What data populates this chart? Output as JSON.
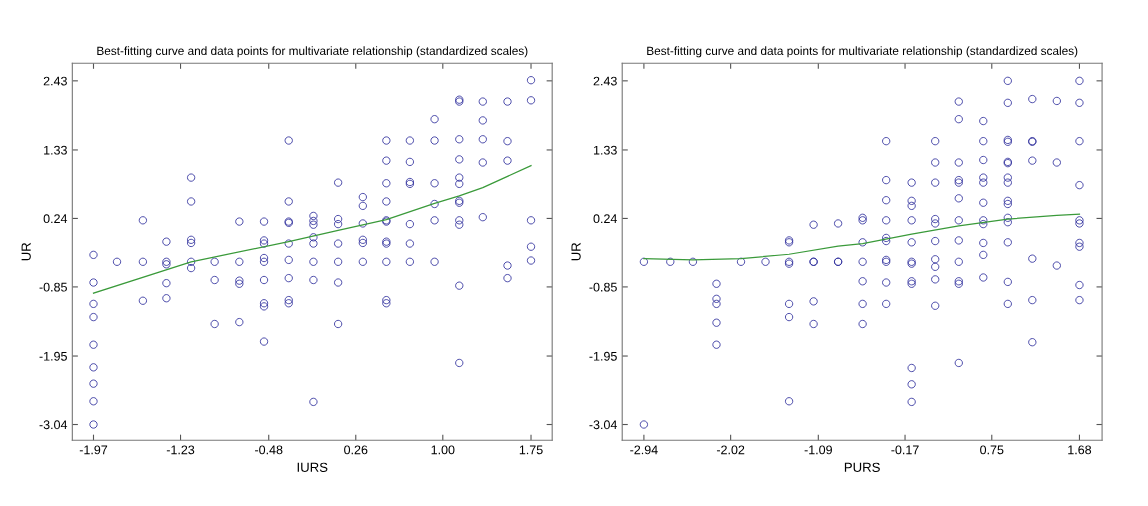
{
  "chart_data": [
    {
      "type": "scatter",
      "title": "Best-fitting curve and data points for multivariate relationship (standardized scales)",
      "xlabel": "IURS",
      "ylabel": "UR",
      "xlim": [
        -2.15,
        1.93
      ],
      "ylim": [
        -3.29,
        2.71
      ],
      "xticks": [
        -1.97,
        -1.23,
        -0.48,
        0.26,
        {
          "value": 1.0,
          "label": "1.00"
        },
        1.75
      ],
      "yticks": [
        2.43,
        1.33,
        0.24,
        -0.85,
        -1.95,
        -3.04
      ],
      "grid": false,
      "series": [
        {
          "marker": "circle",
          "color": "#2a2a9a",
          "x": [
            -1.97,
            -1.97,
            -1.97,
            -1.97,
            -1.97,
            -1.97,
            -1.97,
            -1.97,
            -1.97,
            -1.77,
            -1.55,
            -1.55,
            -1.55,
            -1.35,
            -1.35,
            -1.35,
            -1.35,
            -1.35,
            -1.14,
            -1.14,
            -1.14,
            -1.14,
            -1.14,
            -1.14,
            -0.94,
            -0.94,
            -0.94,
            -0.73,
            -0.73,
            -0.73,
            -0.73,
            -0.73,
            -0.52,
            -0.52,
            -0.52,
            -0.52,
            -0.52,
            -0.52,
            -0.52,
            -0.52,
            -0.52,
            -0.31,
            -0.31,
            -0.31,
            -0.31,
            -0.31,
            -0.31,
            -0.31,
            -0.31,
            -0.31,
            -0.1,
            -0.1,
            -0.1,
            -0.1,
            -0.1,
            -0.1,
            -0.1,
            -0.1,
            0.11,
            0.11,
            0.11,
            0.11,
            0.11,
            0.11,
            0.11,
            0.32,
            0.32,
            0.32,
            0.32,
            0.32,
            0.32,
            0.52,
            0.52,
            0.52,
            0.52,
            0.52,
            0.52,
            0.52,
            0.52,
            0.52,
            0.52,
            0.52,
            0.72,
            0.72,
            0.72,
            0.72,
            0.72,
            0.72,
            0.72,
            0.93,
            0.93,
            0.93,
            0.93,
            0.93,
            0.93,
            1.14,
            1.14,
            1.14,
            1.14,
            1.14,
            1.14,
            1.14,
            1.14,
            1.14,
            1.14,
            1.14,
            1.14,
            1.34,
            1.34,
            1.34,
            1.34,
            1.34,
            1.55,
            1.55,
            1.55,
            1.55,
            1.55,
            1.75,
            1.75,
            1.75,
            1.75,
            1.75
          ],
          "values": [
            -0.34,
            -0.78,
            -1.12,
            -1.33,
            -1.77,
            -2.13,
            -2.39,
            -2.67,
            -3.04,
            -0.45,
            0.21,
            -0.45,
            -1.07,
            -0.13,
            -0.45,
            -0.49,
            -0.79,
            -1.03,
            0.89,
            0.51,
            -0.1,
            -0.15,
            -0.45,
            -0.55,
            -0.45,
            -0.74,
            -1.44,
            0.19,
            -0.45,
            -0.75,
            -0.8,
            -1.41,
            0.19,
            -0.11,
            -0.16,
            -0.39,
            -0.45,
            -0.74,
            -1.11,
            -1.16,
            -1.72,
            1.48,
            0.51,
            0.19,
            0.17,
            -0.16,
            -0.42,
            -0.71,
            -1.06,
            -1.11,
            0.28,
            0.2,
            0.14,
            -0.06,
            -0.16,
            -0.45,
            -0.74,
            -2.68,
            0.81,
            0.23,
            0.15,
            -0.16,
            -0.45,
            -0.78,
            -1.44,
            0.58,
            0.44,
            0.16,
            -0.1,
            -0.15,
            -0.45,
            1.48,
            1.16,
            0.8,
            0.51,
            0.21,
            0.19,
            -0.13,
            -0.16,
            -0.45,
            -1.06,
            -1.11,
            1.48,
            1.14,
            0.82,
            0.79,
            0.15,
            -0.16,
            -0.45,
            1.82,
            1.48,
            0.8,
            0.47,
            0.21,
            -0.45,
            2.13,
            2.1,
            1.5,
            1.18,
            0.89,
            0.79,
            0.52,
            0.49,
            0.21,
            0.14,
            -0.83,
            -2.06,
            2.1,
            1.8,
            1.5,
            1.13,
            0.26,
            2.1,
            1.47,
            1.16,
            -0.51,
            -0.71,
            2.44,
            2.12,
            0.21,
            -0.21,
            -0.43
          ]
        },
        {
          "type": "line",
          "color": "#3a9a3a",
          "x": [
            -1.97,
            -1.14,
            -0.31,
            0.11,
            0.52,
            0.93,
            1.14,
            1.34,
            1.75
          ],
          "values": [
            -0.95,
            -0.45,
            -0.13,
            0.05,
            0.22,
            0.48,
            0.6,
            0.73,
            1.08
          ]
        }
      ]
    },
    {
      "type": "scatter",
      "title": "Best-fitting curve and data points for multivariate relationship (standardized scales)",
      "xlabel": "PURS",
      "ylabel": "UR",
      "xlim": [
        -3.17,
        1.92
      ],
      "ylim": [
        -3.29,
        2.71
      ],
      "xticks": [
        -2.94,
        -2.02,
        -1.09,
        -0.17,
        0.75,
        1.68
      ],
      "yticks": [
        2.43,
        1.33,
        0.24,
        -0.85,
        -1.95,
        -3.04
      ],
      "grid": false,
      "series": [
        {
          "marker": "circle",
          "color": "#2a2a9a",
          "x": [
            -2.94,
            -2.94,
            -2.66,
            -2.42,
            -2.17,
            -2.17,
            -2.17,
            -2.17,
            -2.17,
            -1.91,
            -1.65,
            -1.4,
            -1.4,
            -1.4,
            -1.4,
            -1.4,
            -1.4,
            -1.4,
            -1.14,
            -1.14,
            -1.14,
            -1.14,
            -1.14,
            -0.88,
            -0.88,
            -0.88,
            -0.62,
            -0.62,
            -0.62,
            -0.62,
            -0.62,
            -0.62,
            -0.62,
            -0.37,
            -0.37,
            -0.37,
            -0.37,
            -0.37,
            -0.37,
            -0.37,
            -0.37,
            -0.37,
            -0.37,
            -0.1,
            -0.1,
            -0.1,
            -0.1,
            -0.1,
            -0.1,
            -0.1,
            -0.1,
            -0.1,
            -0.1,
            -0.1,
            -0.1,
            0.15,
            0.15,
            0.15,
            0.15,
            0.15,
            0.15,
            0.15,
            0.15,
            0.15,
            0.15,
            0.4,
            0.4,
            0.4,
            0.4,
            0.4,
            0.4,
            0.4,
            0.4,
            0.4,
            0.4,
            0.4,
            0.4,
            0.66,
            0.66,
            0.66,
            0.66,
            0.66,
            0.66,
            0.66,
            0.66,
            0.66,
            0.66,
            0.66,
            0.92,
            0.92,
            0.92,
            0.92,
            0.92,
            0.92,
            0.92,
            0.92,
            0.92,
            0.92,
            0.92,
            0.92,
            0.92,
            0.92,
            0.92,
            1.18,
            1.18,
            1.18,
            1.18,
            1.18,
            1.18,
            1.18,
            1.44,
            1.44,
            1.44,
            1.68,
            1.68,
            1.68,
            1.68,
            1.68,
            1.68,
            1.68,
            1.68,
            1.68,
            1.68
          ],
          "values": [
            -0.45,
            -3.04,
            -0.45,
            -0.45,
            -0.8,
            -1.04,
            -1.12,
            -1.42,
            -1.77,
            -0.45,
            -0.45,
            -0.11,
            -0.14,
            -0.45,
            -0.48,
            -1.12,
            -1.33,
            -2.67,
            0.14,
            -0.45,
            -0.45,
            -1.08,
            -1.44,
            0.16,
            -0.45,
            -0.45,
            0.25,
            0.21,
            -0.14,
            -0.45,
            -0.76,
            -1.12,
            -1.44,
            1.47,
            0.85,
            0.53,
            0.21,
            -0.07,
            -0.12,
            -0.42,
            -0.45,
            -0.78,
            -1.12,
            0.81,
            0.52,
            0.44,
            0.21,
            -0.14,
            -0.45,
            -0.48,
            -0.76,
            -0.8,
            -2.14,
            -2.4,
            -2.68,
            1.47,
            1.13,
            0.81,
            0.23,
            0.16,
            -0.12,
            -0.41,
            -0.53,
            -0.73,
            -1.15,
            2.1,
            1.82,
            1.13,
            0.85,
            0.81,
            0.56,
            0.21,
            -0.11,
            -0.45,
            -0.76,
            -0.8,
            -2.06,
            1.79,
            1.47,
            1.17,
            0.89,
            0.81,
            0.49,
            0.21,
            0.15,
            -0.15,
            -0.34,
            -0.7,
            2.43,
            2.08,
            1.49,
            1.46,
            1.14,
            1.12,
            0.89,
            0.81,
            0.52,
            0.47,
            0.25,
            0.18,
            -0.14,
            -0.77,
            -1.12,
            2.14,
            1.47,
            1.46,
            1.16,
            -0.4,
            -1.06,
            -1.73,
            2.11,
            1.13,
            -0.51,
            2.43,
            2.08,
            1.47,
            0.77,
            0.21,
            0.16,
            -0.15,
            -0.21,
            -0.82,
            -1.06
          ]
        },
        {
          "type": "line",
          "color": "#3a9a3a",
          "x": [
            -2.94,
            -2.42,
            -1.91,
            -1.4,
            -0.88,
            -0.62,
            -0.1,
            0.4,
            0.92,
            1.44,
            1.68
          ],
          "values": [
            -0.4,
            -0.42,
            -0.4,
            -0.33,
            -0.2,
            -0.16,
            -0.01,
            0.12,
            0.23,
            0.29,
            0.31
          ]
        }
      ]
    }
  ]
}
